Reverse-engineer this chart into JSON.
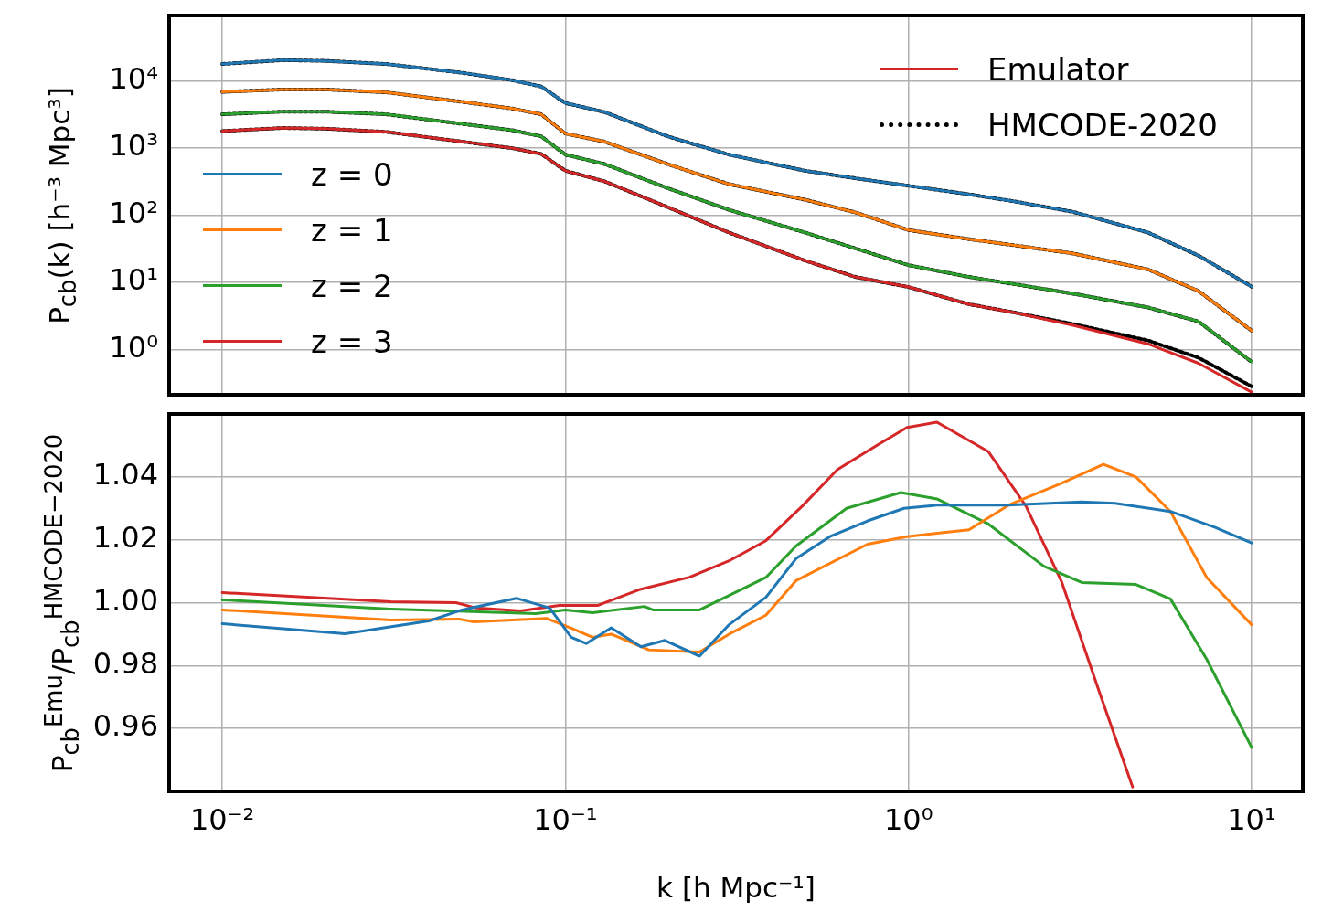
{
  "chart_data": [
    {
      "type": "line",
      "ylabel": "P$_{cb}$(k) [h⁻³ Mpc³]",
      "log": "xy",
      "grid": true,
      "legend": "left",
      "tick_labels": "y",
      "marker": "none",
      "annotations": [
        "Emulator"
      ],
      "x": [
        0.01,
        0.015,
        0.02,
        0.03,
        0.05,
        0.07,
        0.085,
        0.1,
        0.13,
        0.2,
        0.3,
        0.5,
        0.7,
        1,
        1.5,
        2,
        3,
        5,
        7,
        10
      ],
      "xlim": [
        0.007,
        14.1
      ],
      "ylim": [
        0.21,
        95000
      ],
      "xticks": [
        0.01,
        0.1,
        1,
        10
      ],
      "yticks": [
        {
          "value": 1,
          "label": "10⁰"
        },
        {
          "value": 10,
          "label": "10¹"
        },
        {
          "value": 100,
          "label": "10²"
        },
        {
          "value": 1000,
          "label": "10³"
        },
        {
          "value": 10000,
          "label": "10⁴"
        }
      ],
      "series": [
        {
          "name": "z = 0",
          "color": "#1f77b4",
          "values": [
            18000,
            20500,
            20000,
            18000,
            13300,
            10300,
            8300,
            4700,
            3450,
            1480,
            800,
            460,
            355,
            275,
            205,
            163,
            113,
            55,
            25,
            8.6
          ]
        },
        {
          "name": "z = 1",
          "color": "#ff7f0e",
          "values": [
            6900,
            7500,
            7500,
            6800,
            4900,
            3900,
            3200,
            1650,
            1250,
            570,
            290,
            170,
            110,
            60,
            44,
            36,
            27,
            15.5,
            7.4,
            1.9
          ]
        },
        {
          "name": "z = 2",
          "color": "#2ca02c",
          "values": [
            3200,
            3500,
            3500,
            3200,
            2300,
            1850,
            1500,
            800,
            580,
            250,
            120,
            55,
            32,
            18,
            12,
            9.5,
            6.8,
            4.2,
            2.6,
            0.65
          ]
        },
        {
          "name": "z = 3",
          "color": "#d62728",
          "values": [
            1800,
            2000,
            1950,
            1750,
            1250,
            1000,
            820,
            460,
            320,
            130,
            55,
            21,
            12,
            8.5,
            4.7,
            3.6,
            2.3,
            1.2,
            0.62,
            0.23
          ]
        },
        {
          "name": "HMCODE-2020",
          "color": "#000000",
          "line_style": "dotted",
          "values": [
            18000,
            20500,
            20000,
            18000,
            13300,
            10300,
            8300,
            4700,
            3450,
            1480,
            800,
            460,
            355,
            275,
            205,
            163,
            113,
            55,
            25,
            8.6
          ]
        },
        {
          "color": "#000000",
          "line_style": "dotted",
          "values": [
            6900,
            7500,
            7500,
            6800,
            4900,
            3900,
            3200,
            1650,
            1250,
            570,
            290,
            170,
            110,
            60,
            44,
            36,
            27,
            15.5,
            7.4,
            1.9
          ]
        },
        {
          "color": "#000000",
          "line_style": "dotted",
          "values": [
            3200,
            3500,
            3500,
            3200,
            2300,
            1850,
            1500,
            800,
            580,
            250,
            120,
            55,
            32,
            18,
            12,
            9.5,
            6.8,
            4.2,
            2.6,
            0.65
          ]
        },
        {
          "color": "#000000",
          "line_style": "dotted",
          "values": [
            1800,
            2000,
            1950,
            1750,
            1250,
            1000,
            820,
            460,
            320,
            130,
            55,
            21,
            12,
            8.5,
            4.7,
            3.6,
            2.4,
            1.35,
            0.75,
            0.28
          ]
        }
      ]
    },
    {
      "type": "line",
      "xlabel": "k [h Mpc⁻¹]",
      "ylabel": "P$_{cb}$$^{Emu}$/P$_{cb}$$^{HMCODE−2020}$",
      "log": "x",
      "grid": true,
      "marker": "none",
      "xlim": [
        0.007,
        14.1
      ],
      "ylim": [
        0.94,
        1.06
      ],
      "xticks": [
        {
          "value": 0.01,
          "label": "10⁻²"
        },
        {
          "value": 0.1,
          "label": "10⁻¹"
        },
        {
          "value": 1,
          "label": "10⁰"
        },
        {
          "value": 10,
          "label": "10¹"
        }
      ],
      "yticks": [
        0.96,
        0.98,
        {
          "value": 1,
          "label": "1.00"
        },
        1.02,
        1.04
      ],
      "series": [
        {
          "color": "#1f77b4",
          "x": [
            0.01,
            0.0228,
            0.04,
            0.05,
            0.072,
            0.09,
            0.104,
            0.115,
            0.136,
            0.166,
            0.195,
            0.246,
            0.3,
            0.384,
            0.47,
            0.59,
            0.76,
            0.97,
            1.21,
            1.94,
            3.2,
            4,
            5.8,
            7.8,
            10
          ],
          "values": [
            0.9933,
            0.9901,
            0.9942,
            0.9977,
            1.0014,
            0.9983,
            0.989,
            0.987,
            0.992,
            0.986,
            0.988,
            0.983,
            0.993,
            1.0017,
            1.014,
            1.021,
            1.026,
            1.03,
            1.031,
            1.031,
            1.032,
            1.0316,
            1.029,
            1.024,
            1.019
          ]
        },
        {
          "color": "#ff7f0e",
          "x": [
            0.01,
            0.031,
            0.049,
            0.054,
            0.088,
            0.104,
            0.12,
            0.136,
            0.175,
            0.246,
            0.3,
            0.384,
            0.47,
            0.76,
            0.99,
            1.5,
            1.98,
            2.8,
            3.7,
            4.6,
            5.8,
            7.4,
            10
          ],
          "values": [
            0.9977,
            0.9945,
            0.9948,
            0.9939,
            0.995,
            0.9919,
            0.989,
            0.99,
            0.985,
            0.9843,
            0.99,
            0.996,
            1.007,
            1.0186,
            1.021,
            1.0232,
            1.0313,
            1.038,
            1.044,
            1.04,
            1.029,
            1.008,
            0.993
          ]
        },
        {
          "color": "#2ca02c",
          "x": [
            0.01,
            0.031,
            0.082,
            0.1,
            0.12,
            0.17,
            0.18,
            0.246,
            0.3,
            0.384,
            0.47,
            0.66,
            0.95,
            1.21,
            1.71,
            2.48,
            3.2,
            4.6,
            5.8,
            7.4,
            10
          ],
          "values": [
            1.0009,
            0.998,
            0.9965,
            0.9977,
            0.9968,
            0.9988,
            0.9977,
            0.9977,
            1.0023,
            1.008,
            1.018,
            1.03,
            1.035,
            1.033,
            1.025,
            1.0116,
            1.0064,
            1.0058,
            1.0012,
            0.982,
            0.954
          ]
        },
        {
          "color": "#d62728",
          "x": [
            0.01,
            0.031,
            0.048,
            0.055,
            0.074,
            0.096,
            0.124,
            0.166,
            0.23,
            0.3,
            0.384,
            0.49,
            0.62,
            0.82,
            0.99,
            1.21,
            1.71,
            2.2,
            2.8,
            3.6,
            4.5
          ],
          "values": [
            1.0032,
            1.0003,
            1,
            0.9983,
            0.9974,
            0.9991,
            0.9991,
            1.0043,
            1.0081,
            1.0133,
            1.0197,
            1.0307,
            1.0423,
            1.0504,
            1.0557,
            1.0574,
            1.048,
            1.0307,
            1.0064,
            0.9716,
            0.9414
          ]
        }
      ]
    }
  ]
}
